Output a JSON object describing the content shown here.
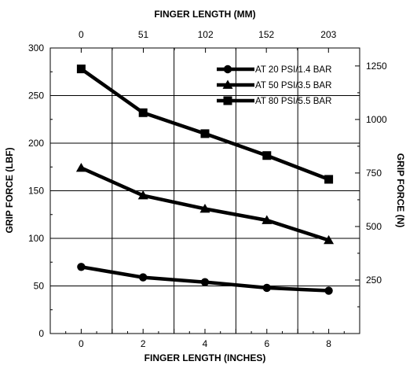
{
  "chart_data": {
    "type": "line",
    "title": "",
    "xlabel": "FINGER LENGTH (INCHES)",
    "x2label": "FINGER LENGTH (MM)",
    "ylabel": "GRIP FORCE (LBF)",
    "y2label": "GRIP FORCE (N)",
    "xlim": [
      -1,
      9
    ],
    "ylim": [
      0,
      300
    ],
    "y2lim": [
      0,
      1334
    ],
    "grid": true,
    "legend_position": "top-right",
    "x_ticks": [
      0,
      2,
      4,
      6,
      8
    ],
    "x_tick_labels": [
      "0",
      "2",
      "4",
      "6",
      "8"
    ],
    "y_ticks": [
      0,
      50,
      100,
      150,
      200,
      250,
      300
    ],
    "y_tick_labels": [
      "0",
      "50",
      "100",
      "150",
      "200",
      "250",
      "300"
    ],
    "x2_ticks": [
      0,
      51,
      102,
      152,
      203
    ],
    "x2_tick_labels": [
      "0",
      "51",
      "102",
      "152",
      "203"
    ],
    "y2_ticks": [
      250,
      500,
      750,
      1000,
      1250
    ],
    "y2_tick_labels": [
      "250",
      "500",
      "750",
      "1000",
      "1250"
    ],
    "series": [
      {
        "name": "AT 20 PSI/1.4 BAR",
        "marker": "circle",
        "x": [
          0,
          2,
          4,
          6,
          8
        ],
        "values": [
          70,
          59,
          54,
          48,
          45
        ]
      },
      {
        "name": "AT 50 PSI/3.5 BAR",
        "marker": "triangle",
        "x": [
          0,
          2,
          4,
          6,
          8
        ],
        "values": [
          174,
          145,
          131,
          119,
          98
        ]
      },
      {
        "name": "AT 80 PSI/5.5 BAR",
        "marker": "square",
        "x": [
          0,
          2,
          4,
          6,
          8
        ],
        "values": [
          278,
          232,
          210,
          187,
          162
        ]
      }
    ],
    "colors": {
      "line": "#000000",
      "grid": "#000000",
      "background": "#ffffff"
    }
  }
}
